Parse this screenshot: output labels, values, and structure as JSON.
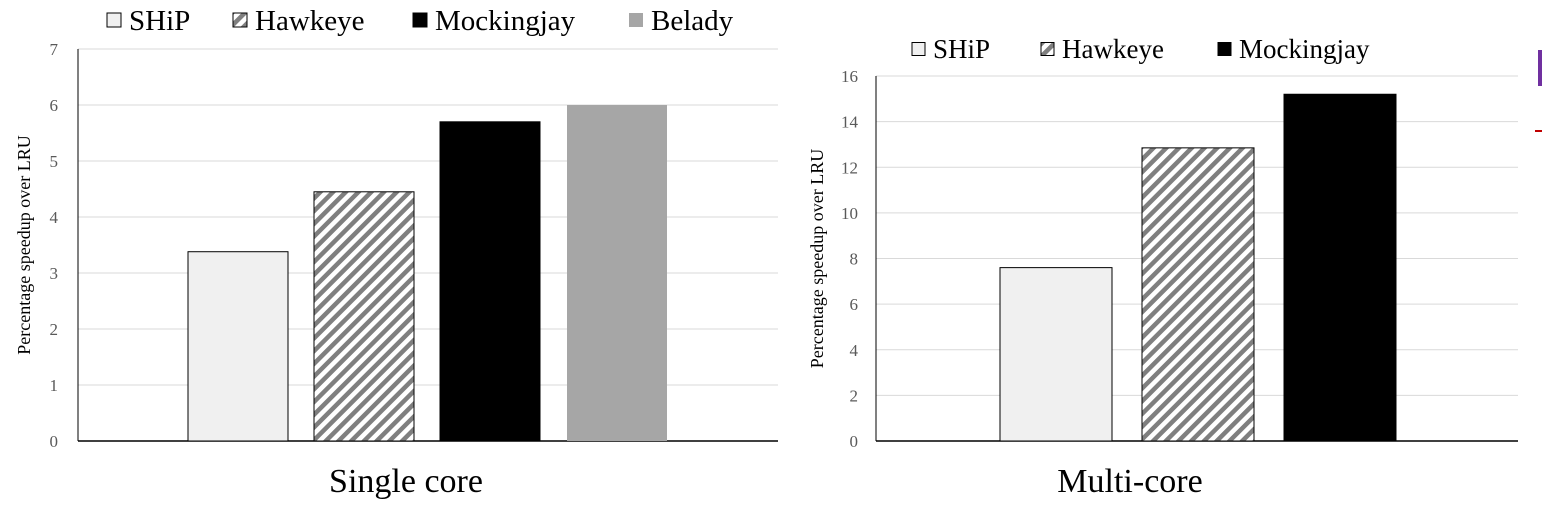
{
  "chart_data": [
    {
      "type": "bar",
      "title": "Single core",
      "ylabel": "Percentage speedup over LRU",
      "ylim": [
        0,
        7
      ],
      "yticks": [
        "0",
        "1",
        "2",
        "3",
        "4",
        "5",
        "6",
        "7"
      ],
      "grid": true,
      "legend_position": "top",
      "categories": [
        "SHiP",
        "Hawkeye",
        "Mockingjay",
        "Belady"
      ],
      "values": [
        3.38,
        4.45,
        5.7,
        6.0
      ],
      "legend": [
        {
          "label": "SHiP",
          "style": "light"
        },
        {
          "label": "Hawkeye",
          "style": "hatch"
        },
        {
          "label": "Mockingjay",
          "style": "black"
        },
        {
          "label": "Belady",
          "style": "gray"
        }
      ]
    },
    {
      "type": "bar",
      "title": "Multi-core",
      "ylabel": "Percentage speedup over LRU",
      "ylim": [
        0,
        16
      ],
      "yticks": [
        "0",
        "2",
        "4",
        "6",
        "8",
        "10",
        "12",
        "14",
        "16"
      ],
      "grid": true,
      "legend_position": "top",
      "categories": [
        "SHiP",
        "Hawkeye",
        "Mockingjay"
      ],
      "values": [
        7.6,
        12.85,
        15.2
      ],
      "legend": [
        {
          "label": "SHiP",
          "style": "light"
        },
        {
          "label": "Hawkeye",
          "style": "hatch"
        },
        {
          "label": "Mockingjay",
          "style": "black"
        }
      ]
    }
  ],
  "colors": {
    "light": "#f0f0f0",
    "black": "#000000",
    "gray": "#a6a6a6",
    "hatch_stroke": "#7f7f7f",
    "grid": "#d9d9d9",
    "axis": "#000000",
    "tick_text": "#595959"
  }
}
